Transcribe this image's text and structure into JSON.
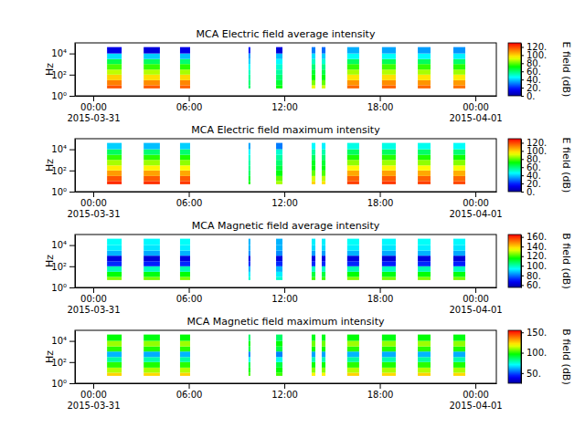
{
  "chart_data": [
    {
      "type": "heatmap",
      "title": "MCA  Electric field average intensity",
      "y_label": "Hz",
      "xlim": [
        "2015-03-30T22:51",
        "2015-04-01T01:19"
      ],
      "xticks": [
        {
          "value": "2015-03-31T00:00",
          "label": "00:00\n2015-03-31"
        },
        {
          "value": "2015-03-31T06:00",
          "label": "06:00"
        },
        {
          "value": "2015-03-31T12:00",
          "label": "12:00"
        },
        {
          "value": "2015-03-31T18:00",
          "label": "18:00"
        },
        {
          "value": "2015-04-01T00:00",
          "label": "00:00\n2015-04-01"
        }
      ],
      "ylim": [
        1,
        100000
      ],
      "log": "y",
      "yticks": [
        {
          "value": 1,
          "label": "10⁰"
        },
        {
          "value": 100,
          "label": "10²"
        },
        {
          "value": 10000,
          "label": "10⁴"
        }
      ],
      "x": [
        [
          "2015-03-31T00:52",
          "2015-03-31T01:47"
        ],
        [
          "2015-03-31T03:10",
          "2015-03-31T04:11"
        ],
        [
          "2015-03-31T05:27",
          "2015-03-31T06:05"
        ],
        [
          "2015-03-31T09:45",
          "2015-03-31T09:52"
        ],
        [
          "2015-03-31T11:29",
          "2015-03-31T11:53"
        ],
        [
          "2015-03-31T13:43",
          "2015-03-31T13:57"
        ],
        [
          "2015-03-31T14:21",
          "2015-03-31T14:35"
        ],
        [
          "2015-03-31T15:57",
          "2015-03-31T16:42"
        ],
        [
          "2015-03-31T18:08",
          "2015-03-31T19:00"
        ],
        [
          "2015-03-31T20:23",
          "2015-03-31T21:11"
        ],
        [
          "2015-03-31T22:37",
          "2015-03-31T23:22"
        ]
      ],
      "y_bins": [
        5,
        10,
        30,
        100,
        300,
        1000,
        3000,
        10000,
        40000
      ],
      "z": [
        [
          118,
          112,
          100,
          88,
          78,
          64,
          42,
          12
        ],
        [
          117,
          110,
          98,
          87,
          76,
          62,
          40,
          10
        ],
        [
          116,
          111,
          99,
          86,
          75,
          60,
          38,
          12
        ],
        [
          62,
          60,
          56,
          52,
          46,
          40,
          34,
          18
        ],
        [
          72,
          66,
          60,
          55,
          50,
          45,
          38,
          10
        ],
        [
          92,
          82,
          72,
          66,
          60,
          52,
          42,
          30
        ],
        [
          90,
          80,
          70,
          64,
          58,
          50,
          40,
          28
        ],
        [
          115,
          109,
          97,
          86,
          76,
          62,
          46,
          36
        ],
        [
          116,
          110,
          98,
          87,
          77,
          63,
          46,
          35
        ],
        [
          115,
          109,
          97,
          86,
          76,
          62,
          45,
          34
        ],
        [
          114,
          108,
          96,
          85,
          75,
          61,
          44,
          33
        ]
      ],
      "colorbar": {
        "label": "E field (dB)",
        "range": [
          0,
          130
        ],
        "ticks": [
          {
            "value": 0,
            "label": "0."
          },
          {
            "value": 20,
            "label": "20."
          },
          {
            "value": 40,
            "label": "40."
          },
          {
            "value": 60,
            "label": "60."
          },
          {
            "value": 80,
            "label": "80."
          },
          {
            "value": 100,
            "label": "100."
          },
          {
            "value": 120,
            "label": "120."
          }
        ]
      }
    },
    {
      "type": "heatmap",
      "title": "MCA  Electric field maximum intensity",
      "y_label": "Hz",
      "xlim": [
        "2015-03-30T22:51",
        "2015-04-01T01:19"
      ],
      "xticks": [
        {
          "value": "2015-03-31T00:00",
          "label": "00:00\n2015-03-31"
        },
        {
          "value": "2015-03-31T06:00",
          "label": "06:00"
        },
        {
          "value": "2015-03-31T12:00",
          "label": "12:00"
        },
        {
          "value": "2015-03-31T18:00",
          "label": "18:00"
        },
        {
          "value": "2015-04-01T00:00",
          "label": "00:00\n2015-04-01"
        }
      ],
      "ylim": [
        1,
        100000
      ],
      "log": "y",
      "yticks": [
        {
          "value": 1,
          "label": "10⁰"
        },
        {
          "value": 100,
          "label": "10²"
        },
        {
          "value": 10000,
          "label": "10⁴"
        }
      ],
      "x": [
        [
          "2015-03-31T00:52",
          "2015-03-31T01:47"
        ],
        [
          "2015-03-31T03:10",
          "2015-03-31T04:11"
        ],
        [
          "2015-03-31T05:27",
          "2015-03-31T06:05"
        ],
        [
          "2015-03-31T09:45",
          "2015-03-31T09:52"
        ],
        [
          "2015-03-31T11:29",
          "2015-03-31T11:53"
        ],
        [
          "2015-03-31T13:43",
          "2015-03-31T13:57"
        ],
        [
          "2015-03-31T14:21",
          "2015-03-31T14:35"
        ],
        [
          "2015-03-31T15:57",
          "2015-03-31T16:42"
        ],
        [
          "2015-03-31T18:08",
          "2015-03-31T19:00"
        ],
        [
          "2015-03-31T20:23",
          "2015-03-31T21:11"
        ],
        [
          "2015-03-31T22:37",
          "2015-03-31T23:22"
        ]
      ],
      "y_bins": [
        5,
        10,
        30,
        100,
        300,
        1000,
        3000,
        10000,
        40000
      ],
      "z": [
        [
          124,
          118,
          108,
          96,
          86,
          76,
          62,
          40
        ],
        [
          123,
          117,
          107,
          95,
          85,
          75,
          60,
          38
        ],
        [
          122,
          117,
          106,
          94,
          84,
          74,
          60,
          40
        ],
        [
          72,
          68,
          62,
          58,
          55,
          50,
          45,
          35
        ],
        [
          86,
          80,
          70,
          65,
          60,
          55,
          50,
          30
        ],
        [
          100,
          90,
          80,
          72,
          68,
          62,
          55,
          45
        ],
        [
          98,
          88,
          78,
          70,
          66,
          60,
          54,
          44
        ],
        [
          121,
          116,
          106,
          94,
          84,
          74,
          62,
          48
        ],
        [
          122,
          117,
          107,
          95,
          85,
          75,
          62,
          48
        ],
        [
          121,
          116,
          106,
          94,
          84,
          74,
          61,
          47
        ],
        [
          120,
          115,
          105,
          93,
          83,
          73,
          60,
          46
        ]
      ],
      "colorbar": {
        "label": "E field (dB)",
        "range": [
          0,
          130
        ],
        "ticks": [
          {
            "value": 0,
            "label": "0."
          },
          {
            "value": 20,
            "label": "20."
          },
          {
            "value": 40,
            "label": "40."
          },
          {
            "value": 60,
            "label": "60."
          },
          {
            "value": 80,
            "label": "80."
          },
          {
            "value": 100,
            "label": "100."
          },
          {
            "value": 120,
            "label": "120."
          }
        ]
      }
    },
    {
      "type": "heatmap",
      "title": "MCA  Magnetic field average intensity",
      "y_label": "Hz",
      "xlim": [
        "2015-03-30T22:51",
        "2015-04-01T01:19"
      ],
      "xticks": [
        {
          "value": "2015-03-31T00:00",
          "label": "00:00\n2015-03-31"
        },
        {
          "value": "2015-03-31T06:00",
          "label": "06:00"
        },
        {
          "value": "2015-03-31T12:00",
          "label": "12:00"
        },
        {
          "value": "2015-03-31T18:00",
          "label": "18:00"
        },
        {
          "value": "2015-04-01T00:00",
          "label": "00:00\n2015-04-01"
        }
      ],
      "ylim": [
        1,
        100000
      ],
      "log": "y",
      "yticks": [
        {
          "value": 1,
          "label": "10⁰"
        },
        {
          "value": 100,
          "label": "10²"
        },
        {
          "value": 10000,
          "label": "10⁴"
        }
      ],
      "x": [
        [
          "2015-03-31T00:52",
          "2015-03-31T01:47"
        ],
        [
          "2015-03-31T03:10",
          "2015-03-31T04:11"
        ],
        [
          "2015-03-31T05:27",
          "2015-03-31T06:05"
        ],
        [
          "2015-03-31T09:45",
          "2015-03-31T09:52"
        ],
        [
          "2015-03-31T11:29",
          "2015-03-31T11:53"
        ],
        [
          "2015-03-31T13:43",
          "2015-03-31T13:57"
        ],
        [
          "2015-03-31T14:21",
          "2015-03-31T14:35"
        ],
        [
          "2015-03-31T15:57",
          "2015-03-31T16:42"
        ],
        [
          "2015-03-31T18:08",
          "2015-03-31T19:00"
        ],
        [
          "2015-03-31T20:23",
          "2015-03-31T21:11"
        ],
        [
          "2015-03-31T22:37",
          "2015-03-31T23:22"
        ]
      ],
      "y_bins": [
        5,
        10,
        30,
        100,
        300,
        1000,
        3000,
        10000,
        40000
      ],
      "z": [
        [
          125,
          115,
          100,
          72,
          64,
          86,
          92,
          94
        ],
        [
          124,
          114,
          99,
          71,
          63,
          85,
          91,
          93
        ],
        [
          125,
          115,
          100,
          72,
          64,
          86,
          92,
          94
        ],
        [
          98,
          92,
          86,
          72,
          64,
          82,
          86,
          86
        ],
        [
          98,
          92,
          86,
          72,
          64,
          82,
          86,
          86
        ],
        [
          120,
          110,
          98,
          72,
          64,
          84,
          90,
          92
        ],
        [
          120,
          110,
          98,
          72,
          64,
          84,
          90,
          92
        ],
        [
          125,
          115,
          100,
          72,
          64,
          86,
          92,
          94
        ],
        [
          124,
          114,
          99,
          71,
          63,
          85,
          91,
          93
        ],
        [
          125,
          115,
          100,
          72,
          64,
          86,
          92,
          94
        ],
        [
          124,
          114,
          99,
          71,
          63,
          85,
          91,
          93
        ]
      ],
      "colorbar": {
        "label": "B field (dB)",
        "range": [
          55,
          165
        ],
        "ticks": [
          {
            "value": 60,
            "label": "60."
          },
          {
            "value": 80,
            "label": "80."
          },
          {
            "value": 100,
            "label": "100."
          },
          {
            "value": 120,
            "label": "120."
          },
          {
            "value": 140,
            "label": "140."
          },
          {
            "value": 160,
            "label": "160."
          }
        ]
      }
    },
    {
      "type": "heatmap",
      "title": "MCA  Magnetic field maximum intensity",
      "y_label": "Hz",
      "xlim": [
        "2015-03-30T22:51",
        "2015-04-01T01:19"
      ],
      "xticks": [
        {
          "value": "2015-03-31T00:00",
          "label": "00:00\n2015-03-31"
        },
        {
          "value": "2015-03-31T06:00",
          "label": "06:00"
        },
        {
          "value": "2015-03-31T12:00",
          "label": "12:00"
        },
        {
          "value": "2015-03-31T18:00",
          "label": "18:00"
        },
        {
          "value": "2015-04-01T00:00",
          "label": "00:00\n2015-04-01"
        }
      ],
      "ylim": [
        1,
        100000
      ],
      "log": "y",
      "yticks": [
        {
          "value": 1,
          "label": "10⁰"
        },
        {
          "value": 100,
          "label": "10²"
        },
        {
          "value": 10000,
          "label": "10⁴"
        }
      ],
      "x": [
        [
          "2015-03-31T00:52",
          "2015-03-31T01:47"
        ],
        [
          "2015-03-31T03:10",
          "2015-03-31T04:11"
        ],
        [
          "2015-03-31T05:27",
          "2015-03-31T06:05"
        ],
        [
          "2015-03-31T09:45",
          "2015-03-31T09:52"
        ],
        [
          "2015-03-31T11:29",
          "2015-03-31T11:53"
        ],
        [
          "2015-03-31T13:43",
          "2015-03-31T13:57"
        ],
        [
          "2015-03-31T14:21",
          "2015-03-31T14:35"
        ],
        [
          "2015-03-31T15:57",
          "2015-03-31T16:42"
        ],
        [
          "2015-03-31T18:08",
          "2015-03-31T19:00"
        ],
        [
          "2015-03-31T20:23",
          "2015-03-31T21:11"
        ],
        [
          "2015-03-31T22:37",
          "2015-03-31T23:22"
        ]
      ],
      "y_bins": [
        5,
        10,
        30,
        100,
        300,
        1000,
        3000,
        10000,
        40000
      ],
      "z": [
        [
          125,
          112,
          100,
          80,
          62,
          100,
          110,
          96
        ],
        [
          124,
          111,
          99,
          79,
          61,
          99,
          109,
          95
        ],
        [
          125,
          112,
          100,
          80,
          62,
          100,
          110,
          96
        ],
        [
          102,
          96,
          90,
          72,
          56,
          90,
          96,
          86
        ],
        [
          102,
          96,
          90,
          72,
          56,
          90,
          96,
          86
        ],
        [
          120,
          108,
          98,
          78,
          60,
          98,
          106,
          94
        ],
        [
          120,
          108,
          98,
          78,
          60,
          98,
          106,
          94
        ],
        [
          125,
          112,
          100,
          80,
          62,
          100,
          110,
          96
        ],
        [
          124,
          111,
          99,
          79,
          61,
          99,
          109,
          95
        ],
        [
          125,
          112,
          100,
          80,
          62,
          100,
          110,
          96
        ],
        [
          124,
          111,
          99,
          79,
          61,
          99,
          109,
          95
        ]
      ],
      "colorbar": {
        "label": "B field (dB)",
        "range": [
          25,
          155
        ],
        "ticks": [
          {
            "value": 50,
            "label": "50."
          },
          {
            "value": 100,
            "label": "100."
          },
          {
            "value": 150,
            "label": "150."
          }
        ]
      }
    }
  ]
}
